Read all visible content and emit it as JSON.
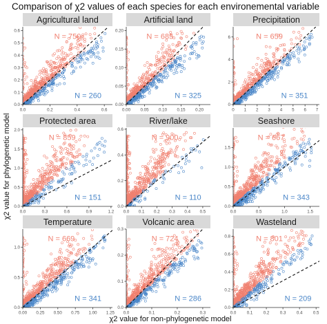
{
  "figure": {
    "title": "Comparison of χ2 values of each species for each environemental variable",
    "xlabel": "χ2 value for non-phylogenetic model",
    "ylabel": "χ2 value for phylogenetic model"
  },
  "colors": {
    "red_points": "#f08070",
    "blue_points": "#4a86c8",
    "strip_bg": "#d9d9d9",
    "axis": "#333333",
    "tick_text": "#4d4d4d",
    "diagonal": "#111111"
  },
  "chart_data": [
    {
      "type": "scatter",
      "title": "Agricultural land",
      "xlim": [
        0,
        0.66
      ],
      "ylim": [
        0,
        0.63
      ],
      "xticks": [
        0.0,
        0.2,
        0.4,
        0.6
      ],
      "xtick_labels": [
        "0.0",
        "0.2",
        "0.4",
        "0.6"
      ],
      "yticks": [
        0.0,
        0.1,
        0.2,
        0.3,
        0.4,
        0.5,
        0.6
      ],
      "ytick_labels": [
        "0.0",
        "0.1",
        "0.2",
        "0.3",
        "0.4",
        "0.5",
        "0.6"
      ],
      "series": [
        {
          "label": "N = 750",
          "count": 750
        },
        {
          "label": "N = 260",
          "count": 260
        }
      ],
      "diagonal": true
    },
    {
      "type": "scatter",
      "title": "Artificial land",
      "xlim": [
        0,
        0.23
      ],
      "ylim": [
        0,
        0.21
      ],
      "xticks": [
        0.0,
        0.05,
        0.1,
        0.15,
        0.2
      ],
      "xtick_labels": [
        "0.00",
        "0.05",
        "0.10",
        "0.15",
        "0.20"
      ],
      "yticks": [
        0.0,
        0.05,
        0.1,
        0.15,
        0.2
      ],
      "ytick_labels": [
        "0.00",
        "0.05",
        "0.10",
        "0.15",
        "0.20"
      ],
      "series": [
        {
          "label": "N = 685",
          "count": 685
        },
        {
          "label": "N = 325",
          "count": 325
        }
      ],
      "diagonal": true
    },
    {
      "type": "scatter",
      "title": "Precipitation",
      "xlim": [
        0,
        7.2
      ],
      "ylim": [
        0,
        6.9
      ],
      "xticks": [
        0,
        1,
        2,
        3,
        4,
        5,
        6,
        7
      ],
      "xtick_labels": [
        "0",
        "1",
        "2",
        "3",
        "4",
        "5",
        "6",
        "7"
      ],
      "yticks": [
        0,
        2,
        4,
        6
      ],
      "ytick_labels": [
        "0",
        "2",
        "4",
        "6"
      ],
      "series": [
        {
          "label": "N = 659",
          "count": 659
        },
        {
          "label": "N = 351",
          "count": 351
        }
      ],
      "diagonal": true
    },
    {
      "type": "scatter",
      "title": "Protected area",
      "xlim": [
        0,
        1.22
      ],
      "ylim": [
        0,
        2.05
      ],
      "xticks": [
        0.0,
        0.3,
        0.6,
        0.9,
        1.2
      ],
      "xtick_labels": [
        "0.0",
        "0.3",
        "0.6",
        "0.9",
        "1.2"
      ],
      "yticks": [
        0.0,
        0.5,
        1.0,
        1.5,
        2.0
      ],
      "ytick_labels": [
        "0.0",
        "0.5",
        "1.0",
        "1.5",
        "2.0"
      ],
      "series": [
        {
          "label": "N = 859",
          "count": 859
        },
        {
          "label": "N = 151",
          "count": 151
        }
      ],
      "diagonal": true
    },
    {
      "type": "scatter",
      "title": "River/lake",
      "xlim": [
        0,
        0.55
      ],
      "ylim": [
        0,
        0.61
      ],
      "xticks": [
        0.0,
        0.1,
        0.2,
        0.3,
        0.4,
        0.5
      ],
      "xtick_labels": [
        "0.0",
        "0.1",
        "0.2",
        "0.3",
        "0.4",
        "0.5"
      ],
      "yticks": [
        0.0,
        0.2,
        0.4,
        0.6
      ],
      "ytick_labels": [
        "0.0",
        "0.2",
        "0.4",
        "0.6"
      ],
      "series": [
        {
          "label": "N = 900",
          "count": 900
        },
        {
          "label": "N = 110",
          "count": 110
        }
      ],
      "diagonal": true
    },
    {
      "type": "scatter",
      "title": "Seashore",
      "xlim": [
        0,
        1.68
      ],
      "ylim": [
        0,
        2.0
      ],
      "xticks": [
        0.0,
        0.5,
        1.0,
        1.5
      ],
      "xtick_labels": [
        "0.0",
        "0.5",
        "1.0",
        "1.5"
      ],
      "yticks": [
        0.0,
        0.5,
        1.0,
        1.5
      ],
      "ytick_labels": [
        "0.0",
        "0.5",
        "1.0",
        "1.5"
      ],
      "series": [
        {
          "label": "N = 667",
          "count": 667
        },
        {
          "label": "N = 343",
          "count": 343
        }
      ],
      "diagonal": true
    },
    {
      "type": "scatter",
      "title": "Temperature",
      "xlim": [
        0,
        1.28
      ],
      "ylim": [
        0,
        1.3
      ],
      "xticks": [
        0.0,
        0.25,
        0.5,
        0.75,
        1.0,
        1.25
      ],
      "xtick_labels": [
        "0.00",
        "0.25",
        "0.50",
        "0.75",
        "1.00",
        "1.25"
      ],
      "yticks": [
        0.0,
        0.5,
        1.0
      ],
      "ytick_labels": [
        "0.0",
        "0.5",
        "1.0"
      ],
      "series": [
        {
          "label": "N = 669",
          "count": 669
        },
        {
          "label": "N = 341",
          "count": 341
        }
      ],
      "diagonal": true
    },
    {
      "type": "scatter",
      "title": "Volcanic area",
      "xlim": [
        0,
        0.33
      ],
      "ylim": [
        0,
        0.3
      ],
      "xticks": [
        0.0,
        0.1,
        0.2,
        0.3
      ],
      "xtick_labels": [
        "0.0",
        "0.1",
        "0.2",
        "0.3"
      ],
      "yticks": [
        0.0,
        0.1,
        0.2,
        0.3
      ],
      "ytick_labels": [
        "0.0",
        "0.1",
        "0.2",
        "0.3"
      ],
      "series": [
        {
          "label": "N = 724",
          "count": 724
        },
        {
          "label": "N = 286",
          "count": 286
        }
      ],
      "diagonal": true
    },
    {
      "type": "scatter",
      "title": "Wasteland",
      "xlim": [
        0,
        0.52
      ],
      "ylim": [
        0,
        0.88
      ],
      "xticks": [
        0.0,
        0.1,
        0.2,
        0.3,
        0.4,
        0.5
      ],
      "xtick_labels": [
        "0.0",
        "0.1",
        "0.2",
        "0.3",
        "0.4",
        "0.5"
      ],
      "yticks": [
        0.0,
        0.2,
        0.4,
        0.6,
        0.8
      ],
      "ytick_labels": [
        "0.0",
        "0.2",
        "0.4",
        "0.6",
        "0.8"
      ],
      "series": [
        {
          "label": "N = 801",
          "count": 801
        },
        {
          "label": "N = 209",
          "count": 209
        }
      ],
      "diagonal": true
    }
  ]
}
